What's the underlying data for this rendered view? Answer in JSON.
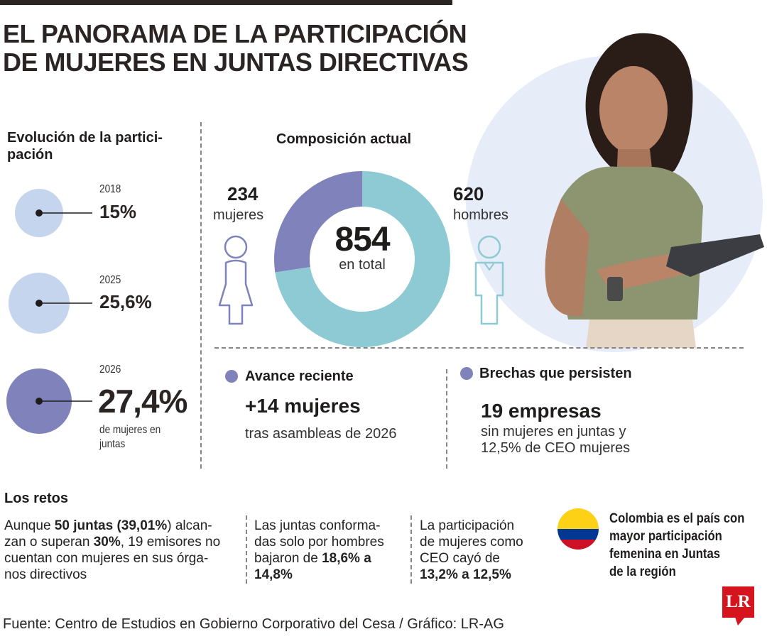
{
  "title_line1": "EL PANORAMA DE LA PARTICIPACIÓN",
  "title_line2": "DE MUJERES EN JUNTAS DIRECTIVAS",
  "evolution": {
    "heading_line1": "Evolución de la partici-",
    "heading_line2": "pación",
    "items": [
      {
        "year": "2018",
        "value_label": "15%",
        "value": 15
      },
      {
        "year": "2025",
        "value_label": "25,6%",
        "value": 25.6
      },
      {
        "year": "2026",
        "value_label": "27,4%",
        "value": 27.4,
        "note_line1": "de mujeres en",
        "note_line2": "juntas"
      }
    ]
  },
  "composition": {
    "heading": "Composición actual",
    "women_count": "234",
    "women_label": "mujeres",
    "men_count": "620",
    "men_label": "hombres",
    "total": "854",
    "total_label": "en total"
  },
  "avance": {
    "heading": "Avance reciente",
    "value": "+14 mujeres",
    "sub": "tras asambleas de 2026"
  },
  "brechas": {
    "heading": "Brechas que persisten",
    "value": "19 empresas",
    "sub_line1": "sin mujeres en juntas y",
    "sub_line2": "12,5% de CEO mujeres"
  },
  "retos": {
    "heading": "Los retos",
    "col1": {
      "l1a": "Aunque ",
      "l1b": "50 juntas",
      "l1c": " (",
      "l1d": "39,01%",
      "l1e": ") alcan-",
      "l2a": "zan o superan ",
      "l2b": "30%",
      "l2c": ", 19 emisores no",
      "l3": "cuentan con mujeres en sus órga-",
      "l4": "nos directivos"
    },
    "col2": {
      "l1": "Las juntas conforma-",
      "l2": "das solo por hombres",
      "l3a": "bajaron de ",
      "l3b": "18,6% a",
      "l4": "14,8%"
    },
    "col3": {
      "l1": "La participación",
      "l2": "de mujeres como",
      "l3": "CEO cayó de",
      "l4": "13,2% a 12,5%"
    }
  },
  "colombia": {
    "l1": "Colombia es el país con",
    "l2": "mayor participación",
    "l3": "femenina en Juntas",
    "l4": "de la región"
  },
  "footer": "Fuente: Centro de Estudios en Gobierno Corporativo del Cesa / Gráfico: LR-AG",
  "logo_text": "LR",
  "colors": {
    "women": "#7f82bb",
    "men": "#8dcad3",
    "light_circle": "#c6d5ee",
    "photo_bg": "#e6edf8"
  },
  "chart_data": [
    {
      "type": "pie",
      "title": "Composición actual",
      "categories": [
        "mujeres",
        "hombres"
      ],
      "values": [
        234,
        620
      ],
      "total": 854
    },
    {
      "type": "scatter",
      "title": "Evolución de la participación",
      "categories": [
        "2018",
        "2025",
        "2026"
      ],
      "values": [
        15,
        25.6,
        27.4
      ]
    }
  ]
}
